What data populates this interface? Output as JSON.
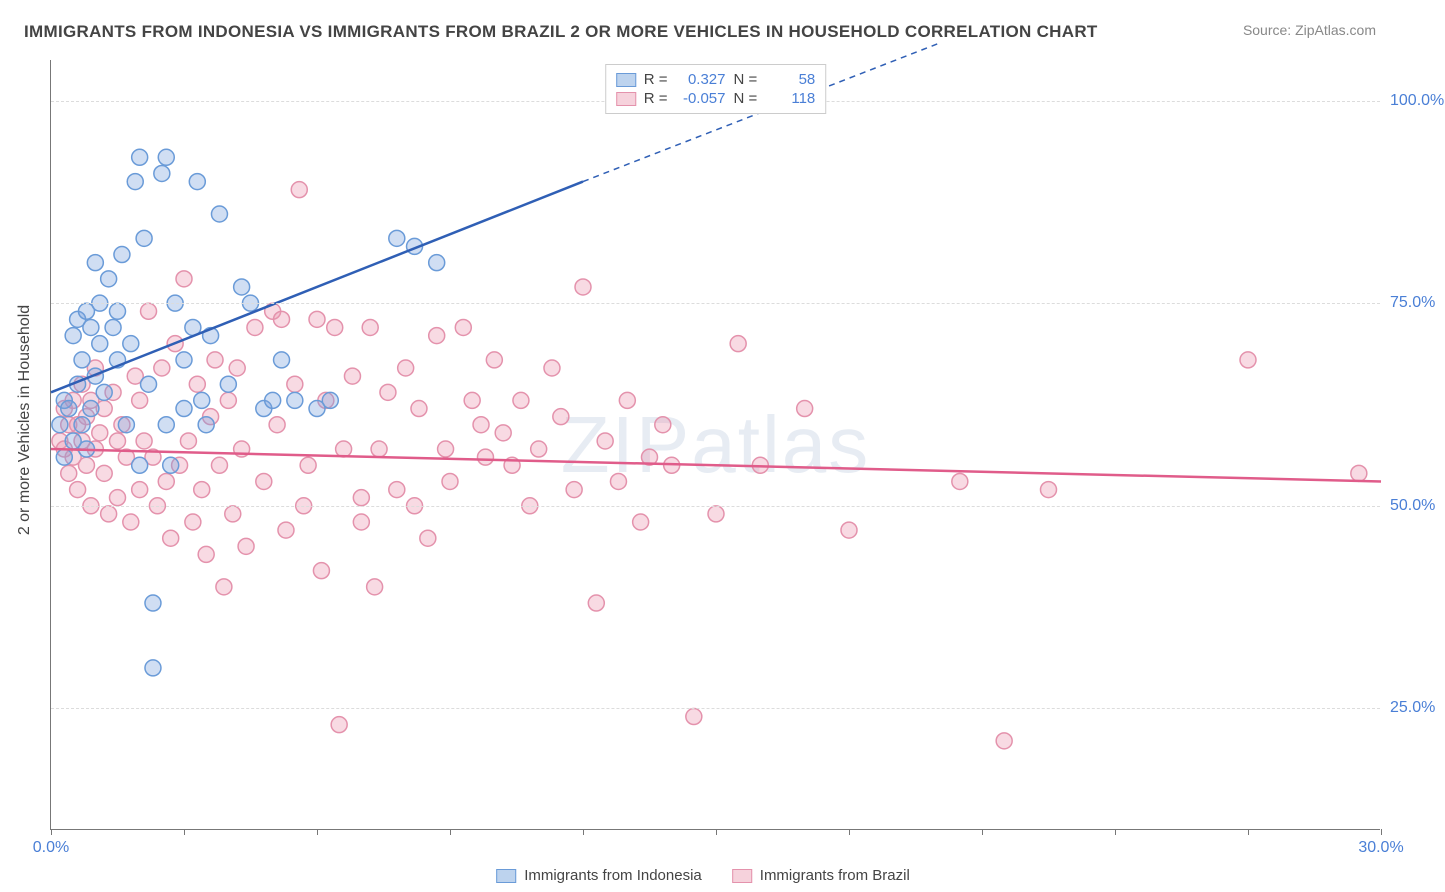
{
  "title": "IMMIGRANTS FROM INDONESIA VS IMMIGRANTS FROM BRAZIL 2 OR MORE VEHICLES IN HOUSEHOLD CORRELATION CHART",
  "source": "Source: ZipAtlas.com",
  "ylabel": "2 or more Vehicles in Household",
  "watermark": "ZIPatlas",
  "chart": {
    "type": "scatter",
    "xlim": [
      0,
      30
    ],
    "ylim": [
      10,
      105
    ],
    "yticks": [
      25,
      50,
      75,
      100
    ],
    "ytick_labels": [
      "25.0%",
      "50.0%",
      "75.0%",
      "100.0%"
    ],
    "xticks": [
      0,
      3,
      6,
      9,
      12,
      15,
      18,
      21,
      24,
      27,
      30
    ],
    "xtick_labels_shown": {
      "0": "0.0%",
      "30": "30.0%"
    },
    "grid_color": "#dcdcdc",
    "background_color": "#ffffff",
    "axis_color": "#777777",
    "marker_radius": 8,
    "marker_stroke_width": 1.5,
    "trend_line_width": 2.5
  },
  "series": [
    {
      "name": "Immigrants from Indonesia",
      "fill": "rgba(120,160,220,0.35)",
      "stroke": "#6a9bd8",
      "swatch_fill": "#bdd3ee",
      "swatch_border": "#6a9bd8",
      "R": "0.327",
      "N": "58",
      "trend": {
        "x1": 0,
        "y1": 64,
        "x2": 12,
        "y2": 90,
        "dash_extend_to_x": 20,
        "dash_extend_to_y": 107
      },
      "points": [
        [
          0.2,
          60
        ],
        [
          0.3,
          63
        ],
        [
          0.3,
          56
        ],
        [
          0.4,
          62
        ],
        [
          0.5,
          58
        ],
        [
          0.5,
          71
        ],
        [
          0.6,
          65
        ],
        [
          0.6,
          73
        ],
        [
          0.7,
          60
        ],
        [
          0.7,
          68
        ],
        [
          0.8,
          74
        ],
        [
          0.8,
          57
        ],
        [
          0.9,
          72
        ],
        [
          0.9,
          62
        ],
        [
          1.0,
          80
        ],
        [
          1.0,
          66
        ],
        [
          1.1,
          70
        ],
        [
          1.1,
          75
        ],
        [
          1.2,
          64
        ],
        [
          1.3,
          78
        ],
        [
          1.4,
          72
        ],
        [
          1.5,
          68
        ],
        [
          1.5,
          74
        ],
        [
          1.6,
          81
        ],
        [
          1.7,
          60
        ],
        [
          1.8,
          70
        ],
        [
          1.9,
          90
        ],
        [
          2.0,
          93
        ],
        [
          2.0,
          55
        ],
        [
          2.1,
          83
        ],
        [
          2.2,
          65
        ],
        [
          2.3,
          38
        ],
        [
          2.3,
          30
        ],
        [
          2.5,
          91
        ],
        [
          2.6,
          93
        ],
        [
          2.6,
          60
        ],
        [
          2.7,
          55
        ],
        [
          2.8,
          75
        ],
        [
          3.0,
          68
        ],
        [
          3.0,
          62
        ],
        [
          3.2,
          72
        ],
        [
          3.3,
          90
        ],
        [
          3.4,
          63
        ],
        [
          3.5,
          60
        ],
        [
          3.6,
          71
        ],
        [
          3.8,
          86
        ],
        [
          4.0,
          65
        ],
        [
          4.3,
          77
        ],
        [
          4.5,
          75
        ],
        [
          4.8,
          62
        ],
        [
          5.0,
          63
        ],
        [
          5.2,
          68
        ],
        [
          5.5,
          63
        ],
        [
          6.0,
          62
        ],
        [
          6.3,
          63
        ],
        [
          7.8,
          83
        ],
        [
          8.2,
          82
        ],
        [
          8.7,
          80
        ]
      ]
    },
    {
      "name": "Immigrants from Brazil",
      "fill": "rgba(235,150,175,0.35)",
      "stroke": "#e492ac",
      "swatch_fill": "#f6d2dc",
      "swatch_border": "#e492ac",
      "R": "-0.057",
      "N": "118",
      "trend": {
        "x1": 0,
        "y1": 57,
        "x2": 30,
        "y2": 53
      },
      "points": [
        [
          0.2,
          58
        ],
        [
          0.3,
          62
        ],
        [
          0.3,
          57
        ],
        [
          0.4,
          60
        ],
        [
          0.4,
          54
        ],
        [
          0.5,
          63
        ],
        [
          0.5,
          56
        ],
        [
          0.6,
          60
        ],
        [
          0.6,
          52
        ],
        [
          0.7,
          65
        ],
        [
          0.7,
          58
        ],
        [
          0.8,
          55
        ],
        [
          0.8,
          61
        ],
        [
          0.9,
          63
        ],
        [
          0.9,
          50
        ],
        [
          1.0,
          57
        ],
        [
          1.0,
          67
        ],
        [
          1.1,
          59
        ],
        [
          1.2,
          54
        ],
        [
          1.2,
          62
        ],
        [
          1.3,
          49
        ],
        [
          1.4,
          64
        ],
        [
          1.5,
          51
        ],
        [
          1.5,
          58
        ],
        [
          1.6,
          60
        ],
        [
          1.7,
          56
        ],
        [
          1.8,
          48
        ],
        [
          1.9,
          66
        ],
        [
          2.0,
          52
        ],
        [
          2.0,
          63
        ],
        [
          2.1,
          58
        ],
        [
          2.2,
          74
        ],
        [
          2.3,
          56
        ],
        [
          2.4,
          50
        ],
        [
          2.5,
          67
        ],
        [
          2.6,
          53
        ],
        [
          2.7,
          46
        ],
        [
          2.8,
          70
        ],
        [
          2.9,
          55
        ],
        [
          3.0,
          78
        ],
        [
          3.1,
          58
        ],
        [
          3.2,
          48
        ],
        [
          3.3,
          65
        ],
        [
          3.4,
          52
        ],
        [
          3.5,
          44
        ],
        [
          3.6,
          61
        ],
        [
          3.7,
          68
        ],
        [
          3.8,
          55
        ],
        [
          3.9,
          40
        ],
        [
          4.0,
          63
        ],
        [
          4.1,
          49
        ],
        [
          4.2,
          67
        ],
        [
          4.3,
          57
        ],
        [
          4.4,
          45
        ],
        [
          4.6,
          72
        ],
        [
          4.8,
          53
        ],
        [
          5.0,
          74
        ],
        [
          5.1,
          60
        ],
        [
          5.2,
          73
        ],
        [
          5.3,
          47
        ],
        [
          5.5,
          65
        ],
        [
          5.6,
          89
        ],
        [
          5.7,
          50
        ],
        [
          5.8,
          55
        ],
        [
          6.0,
          73
        ],
        [
          6.1,
          42
        ],
        [
          6.2,
          63
        ],
        [
          6.4,
          72
        ],
        [
          6.5,
          23
        ],
        [
          6.6,
          57
        ],
        [
          6.8,
          66
        ],
        [
          7.0,
          48
        ],
        [
          7.0,
          51
        ],
        [
          7.2,
          72
        ],
        [
          7.3,
          40
        ],
        [
          7.4,
          57
        ],
        [
          7.6,
          64
        ],
        [
          7.8,
          52
        ],
        [
          8.0,
          67
        ],
        [
          8.2,
          50
        ],
        [
          8.3,
          62
        ],
        [
          8.5,
          46
        ],
        [
          8.7,
          71
        ],
        [
          8.9,
          57
        ],
        [
          9.0,
          53
        ],
        [
          9.3,
          72
        ],
        [
          9.5,
          63
        ],
        [
          9.7,
          60
        ],
        [
          9.8,
          56
        ],
        [
          10.0,
          68
        ],
        [
          10.2,
          59
        ],
        [
          10.4,
          55
        ],
        [
          10.6,
          63
        ],
        [
          10.8,
          50
        ],
        [
          11.0,
          57
        ],
        [
          11.3,
          67
        ],
        [
          11.5,
          61
        ],
        [
          11.8,
          52
        ],
        [
          12.0,
          77
        ],
        [
          12.3,
          38
        ],
        [
          12.5,
          58
        ],
        [
          12.8,
          53
        ],
        [
          13.0,
          63
        ],
        [
          13.3,
          48
        ],
        [
          13.5,
          56
        ],
        [
          13.8,
          60
        ],
        [
          14.0,
          55
        ],
        [
          14.5,
          24
        ],
        [
          15.0,
          49
        ],
        [
          15.5,
          70
        ],
        [
          16.0,
          55
        ],
        [
          17.0,
          62
        ],
        [
          18.0,
          47
        ],
        [
          20.5,
          53
        ],
        [
          21.5,
          21
        ],
        [
          22.5,
          52
        ],
        [
          27.0,
          68
        ],
        [
          29.5,
          54
        ]
      ]
    }
  ],
  "legend": {
    "R_label": "R =",
    "N_label": "N ="
  }
}
